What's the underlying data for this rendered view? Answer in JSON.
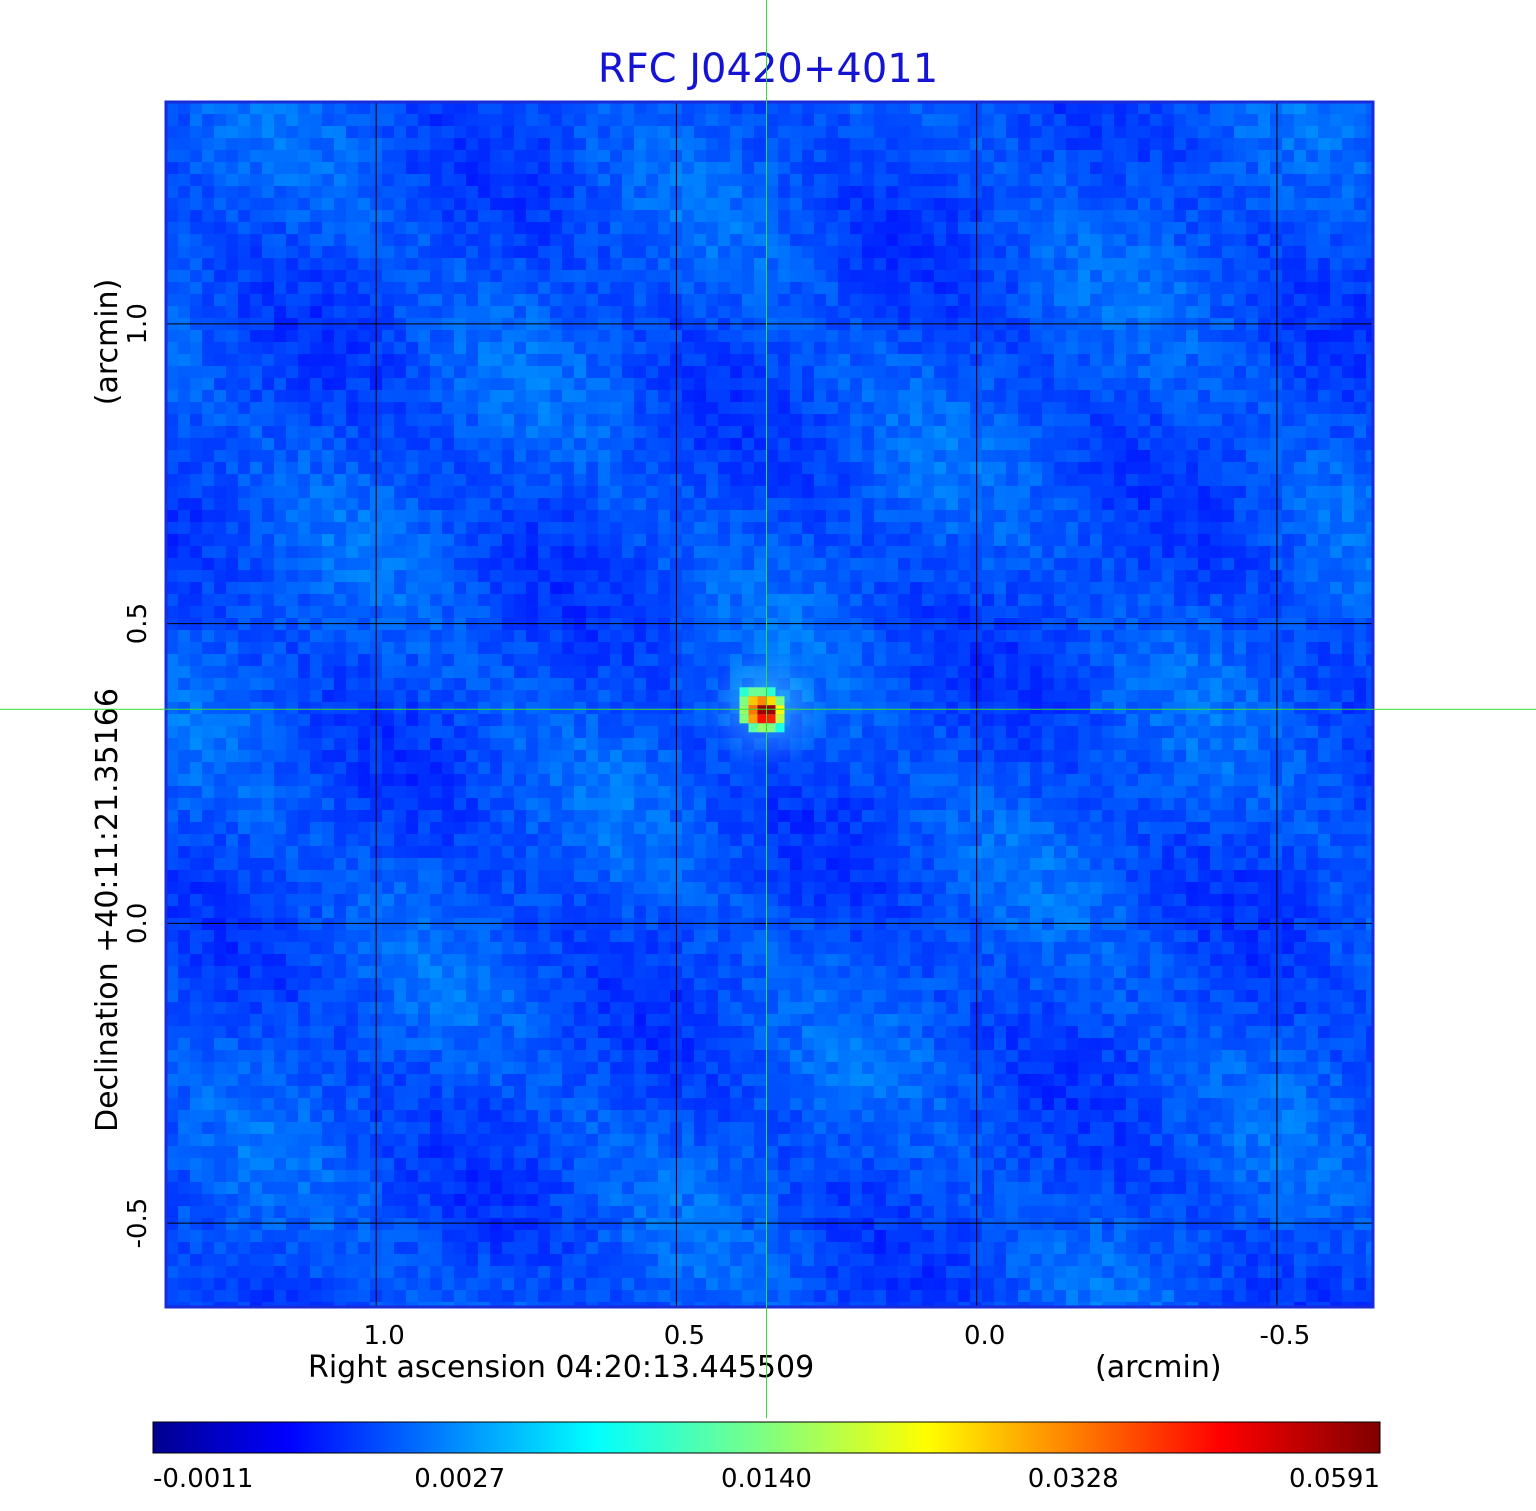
{
  "chart_data": {
    "type": "heatmap",
    "title": "RFC J0420+4011",
    "x_axis": {
      "label": "Right ascension  04:20:13.445509",
      "unit_label": "(arcmin)",
      "range": [
        1.35,
        -0.66
      ],
      "ticks": [
        1.0,
        0.5,
        0.0,
        -0.5
      ],
      "tick_labels": [
        "1.0",
        "0.5",
        "0.0",
        "-0.5"
      ]
    },
    "y_axis": {
      "label": "Declination  +40:11:21.35166",
      "unit_label": "(arcmin)",
      "range": [
        -0.64,
        1.37
      ],
      "ticks": [
        -0.5,
        0.0,
        0.5,
        1.0
      ],
      "tick_labels": [
        "-0.5",
        "0.0",
        "0.5",
        "1.0"
      ]
    },
    "grid": true,
    "crosshair": {
      "x": 0.35,
      "y": 0.357,
      "color": "#33dd33"
    },
    "source_peak": {
      "x": 0.35,
      "y": 0.357,
      "value": 0.0591
    },
    "background_level": 0.0005,
    "colormap": "jet",
    "colorbar": {
      "orientation": "horizontal",
      "position": "bottom",
      "tick_labels": [
        "-0.0011",
        "0.0027",
        "0.0140",
        "0.0328",
        "0.0591"
      ],
      "min": -0.0011,
      "max": 0.0591
    }
  }
}
